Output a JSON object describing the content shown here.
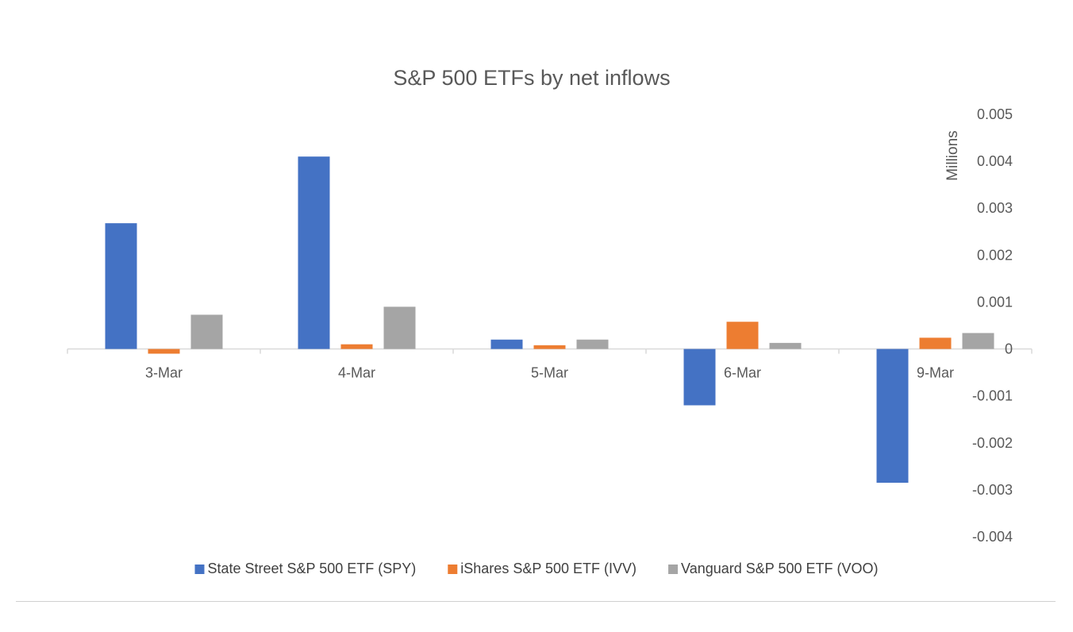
{
  "chart_data": {
    "type": "bar",
    "title": "S&P 500 ETFs by net inflows",
    "ylabel": "Millions",
    "xlabel": "",
    "categories": [
      "3-Mar",
      "4-Mar",
      "5-Mar",
      "6-Mar",
      "9-Mar"
    ],
    "series": [
      {
        "name": "State Street S&P 500 ETF (SPY)",
        "color": "#4472c4",
        "values": [
          0.00268,
          0.0041,
          0.0002,
          -0.0012,
          -0.00285
        ]
      },
      {
        "name": "iShares S&P 500 ETF (IVV)",
        "color": "#ed7d31",
        "values": [
          -0.0001,
          0.0001,
          8e-05,
          0.00058,
          0.00024
        ]
      },
      {
        "name": "Vanguard S&P 500 ETF (VOO)",
        "color": "#a5a5a5",
        "values": [
          0.00073,
          0.0009,
          0.0002,
          0.00013,
          0.00034
        ]
      }
    ],
    "ylim": [
      -0.004,
      0.005
    ],
    "yticks": [
      0.005,
      0.004,
      0.003,
      0.002,
      0.001,
      0,
      -0.001,
      -0.002,
      -0.003,
      -0.004
    ],
    "ytick_labels": [
      "0.005",
      "0.004",
      "0.003",
      "0.002",
      "0.001",
      "0",
      "-0.001",
      "-0.002",
      "-0.003",
      "-0.004"
    ],
    "y_axis_side": "right",
    "legend_position": "bottom",
    "grid": false
  }
}
